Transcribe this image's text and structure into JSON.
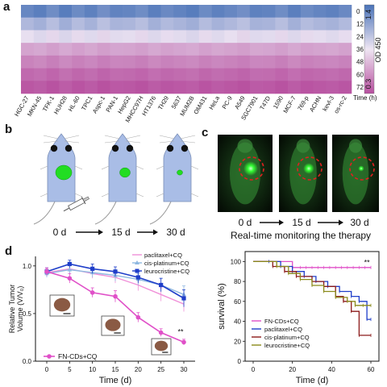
{
  "panels": {
    "a": "a",
    "b": "b",
    "c": "c",
    "d": "d"
  },
  "colors": {
    "heat_high": "#4a73b8",
    "heat_mid": "#e8dff0",
    "heat_low": "#b74f9f",
    "fn_cds": "#e050c8",
    "paclitaxel": "#1f3ec9",
    "cisplatinum": "#8b1a1a",
    "leurocristine": "#8a8a1a",
    "cis_line": "#8fb8e0",
    "pac_line_d1": "#f090d8",
    "mouse_body": "#a9bde6",
    "tumor": "#22dd22",
    "circle": "#e02020"
  },
  "heatmap": {
    "cell_lines": [
      "HGC-27",
      "MKN-45",
      "TFK-1",
      "HUH28",
      "HL-60",
      "TPC1",
      "Aspc-1",
      "PAN-1",
      "HepG2",
      "MHCC97H",
      "HT1376",
      "TH29",
      "5637",
      "MUM2B",
      "OM431",
      "HeLa",
      "PC-9",
      "A549",
      "SGC7901",
      "T47D",
      "1590",
      "MCF-7",
      "769-p",
      "ACHN",
      "kevl-3",
      "os-rc-2"
    ],
    "time_labels": [
      "0",
      "12",
      "24",
      "36",
      "48",
      "60",
      "72"
    ],
    "time_unit": "Time (h)",
    "colorbar_label": "OD 450",
    "colorbar_max": "1.4",
    "colorbar_min": "0.3",
    "row_levels": [
      1.3,
      1.05,
      0.85,
      0.62,
      0.5,
      0.4,
      0.33
    ],
    "row_jitter": [
      0.0,
      0.04,
      -0.03,
      0.05,
      -0.02,
      0.03,
      -0.04,
      0.02,
      0.01,
      -0.03,
      0.04,
      -0.01,
      0.02,
      0.05,
      -0.02,
      0.03,
      0.0,
      -0.04,
      0.03,
      0.02,
      -0.03,
      0.04,
      -0.02,
      0.01,
      0.03,
      -0.01
    ]
  },
  "mouse_b": {
    "days": [
      "0 d",
      "15 d",
      "30 d"
    ],
    "tumor_scale": [
      1.0,
      0.65,
      0.35
    ]
  },
  "mouse_c": {
    "days": [
      "0 d",
      "15 d",
      "30 d"
    ],
    "caption": "Real-time monitoring the therapy"
  },
  "chart_data": [
    {
      "type": "line",
      "xlabel": "Time (d)",
      "ylabel": "Relative Tumor Volume (V/V₀)",
      "ylabel_lines": [
        "Relative Tumor",
        "Volume (V/V₀)"
      ],
      "x": [
        0,
        5,
        10,
        15,
        20,
        25,
        30
      ],
      "xlim": [
        0,
        30
      ],
      "ylim": [
        0,
        1.1
      ],
      "xticks": [
        "0",
        "5",
        "10",
        "15",
        "20",
        "25",
        "30"
      ],
      "yticks": [
        "0.0",
        "0.5",
        "1.0"
      ],
      "annotation": "**",
      "series": [
        {
          "name": "paclitaxel+CQ",
          "values": [
            0.93,
            0.97,
            0.92,
            0.88,
            0.8,
            0.7,
            0.6
          ],
          "err": [
            0.04,
            0.05,
            0.05,
            0.06,
            0.06,
            0.07,
            0.08
          ]
        },
        {
          "name": "cis-platinum+CQ",
          "values": [
            0.92,
            0.96,
            0.93,
            0.9,
            0.86,
            0.8,
            0.7
          ],
          "err": [
            0.04,
            0.05,
            0.05,
            0.06,
            0.06,
            0.07,
            0.09
          ]
        },
        {
          "name": "leurocristine+CQ",
          "values": [
            0.94,
            1.02,
            0.97,
            0.94,
            0.88,
            0.8,
            0.66
          ],
          "err": [
            0.04,
            0.04,
            0.05,
            0.05,
            0.06,
            0.07,
            0.09
          ]
        },
        {
          "name": "FN-CDs+CQ",
          "values": [
            0.94,
            0.87,
            0.72,
            0.68,
            0.46,
            0.3,
            0.2
          ],
          "err": [
            0.04,
            0.05,
            0.05,
            0.06,
            0.05,
            0.04,
            0.03
          ]
        }
      ]
    },
    {
      "type": "line",
      "xlabel": "Time (d)",
      "ylabel": "survival (%)",
      "xlim": [
        0,
        60
      ],
      "ylim": [
        0,
        110
      ],
      "xticks": [
        "0",
        "20",
        "40",
        "60"
      ],
      "yticks": [
        "0",
        "20",
        "40",
        "60",
        "80",
        "100"
      ],
      "annotation": "**",
      "series": [
        {
          "name": "FN-CDs+CQ",
          "x": [
            0,
            20,
            60
          ],
          "values": [
            100,
            94,
            94
          ]
        },
        {
          "name": "paclitaxel+CQ",
          "x": [
            0,
            8,
            14,
            20,
            26,
            32,
            38,
            44,
            50,
            54,
            58,
            60
          ],
          "values": [
            100,
            100,
            95,
            90,
            85,
            80,
            75,
            70,
            65,
            60,
            42,
            42
          ]
        },
        {
          "name": "cis-platinum+CQ",
          "x": [
            0,
            10,
            16,
            22,
            30,
            36,
            42,
            46,
            50,
            54,
            60
          ],
          "values": [
            100,
            95,
            90,
            85,
            80,
            75,
            65,
            60,
            50,
            26,
            26
          ]
        },
        {
          "name": "leurocristine+CQ",
          "x": [
            0,
            12,
            18,
            24,
            30,
            36,
            42,
            48,
            52,
            56,
            60
          ],
          "values": [
            100,
            95,
            88,
            82,
            76,
            70,
            64,
            60,
            56,
            56,
            56
          ]
        }
      ]
    }
  ]
}
